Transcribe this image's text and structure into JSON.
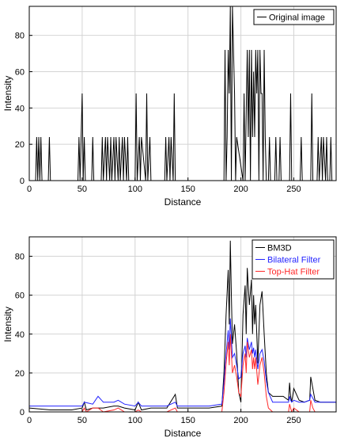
{
  "chart_data": [
    {
      "type": "line",
      "title": "",
      "xlabel": "Distance",
      "ylabel": "Intensity",
      "xlim": [
        0,
        290
      ],
      "ylim": [
        0,
        96
      ],
      "xticks": [
        0,
        50,
        100,
        150,
        200,
        250
      ],
      "yticks": [
        0,
        20,
        40,
        60,
        80
      ],
      "grid": true,
      "legend_position": "top-right",
      "series": [
        {
          "name": "Original image",
          "color": "#000000",
          "x": [
            0,
            6,
            7,
            8,
            9,
            10,
            11,
            12,
            13,
            18,
            19,
            20,
            46,
            47,
            48,
            50,
            51,
            52,
            53,
            59,
            60,
            61,
            68,
            69,
            70,
            72,
            73,
            74,
            76,
            77,
            78,
            80,
            81,
            82,
            84,
            85,
            86,
            88,
            89,
            90,
            92,
            93,
            94,
            100,
            101,
            102,
            104,
            105,
            106,
            110,
            111,
            112,
            114,
            115,
            116,
            128,
            129,
            130,
            132,
            133,
            134,
            136,
            137,
            138,
            184,
            185,
            186,
            187,
            188,
            189,
            190,
            191,
            192,
            194,
            195,
            196,
            202,
            203,
            204,
            206,
            207,
            208,
            209,
            210,
            211,
            212,
            213,
            214,
            215,
            216,
            217,
            218,
            219,
            220,
            221,
            222,
            223,
            224,
            226,
            227,
            228,
            232,
            233,
            234,
            236,
            237,
            238,
            246,
            247,
            248,
            256,
            257,
            258,
            266,
            267,
            268,
            272,
            273,
            274,
            276,
            277,
            278,
            280,
            281,
            282,
            284,
            285,
            286,
            290
          ],
          "y": [
            0,
            0,
            24,
            0,
            24,
            0,
            24,
            0,
            0,
            0,
            24,
            0,
            0,
            24,
            0,
            48,
            0,
            24,
            0,
            0,
            24,
            0,
            0,
            24,
            0,
            24,
            0,
            24,
            0,
            24,
            0,
            24,
            0,
            24,
            0,
            24,
            0,
            24,
            0,
            24,
            0,
            24,
            0,
            0,
            48,
            0,
            24,
            0,
            24,
            0,
            48,
            0,
            24,
            0,
            0,
            0,
            24,
            0,
            24,
            0,
            24,
            0,
            48,
            0,
            0,
            72,
            0,
            24,
            72,
            48,
            96,
            0,
            96,
            48,
            0,
            24,
            0,
            48,
            0,
            72,
            24,
            72,
            0,
            72,
            24,
            60,
            24,
            72,
            48,
            72,
            0,
            72,
            48,
            48,
            0,
            72,
            24,
            0,
            0,
            24,
            0,
            0,
            24,
            0,
            0,
            24,
            0,
            0,
            48,
            0,
            0,
            24,
            0,
            0,
            48,
            0,
            0,
            24,
            0,
            24,
            0,
            24,
            0,
            24,
            0,
            0,
            24,
            0,
            0
          ]
        }
      ]
    },
    {
      "type": "line",
      "title": "",
      "xlabel": "Distance",
      "ylabel": "Intensity",
      "xlim": [
        0,
        290
      ],
      "ylim": [
        0,
        90
      ],
      "xticks": [
        0,
        50,
        100,
        150,
        200,
        250
      ],
      "yticks": [
        0,
        20,
        40,
        60,
        80
      ],
      "grid": true,
      "legend_position": "top-right",
      "series": [
        {
          "name": "BM3D",
          "color": "#000000",
          "x": [
            0,
            20,
            40,
            50,
            52,
            54,
            60,
            70,
            80,
            84,
            90,
            100,
            103,
            106,
            115,
            130,
            138,
            140,
            150,
            170,
            182,
            184,
            186,
            188,
            189,
            190,
            191,
            192,
            194,
            196,
            198,
            200,
            202,
            204,
            205,
            206,
            208,
            210,
            211,
            212,
            213,
            214,
            216,
            218,
            220,
            222,
            224,
            226,
            230,
            240,
            245,
            246,
            247,
            248,
            250,
            255,
            260,
            265,
            266,
            268,
            270,
            275,
            280,
            290
          ],
          "y": [
            2,
            1,
            1,
            2,
            5,
            1,
            2,
            2,
            3,
            3,
            2,
            1,
            5,
            1,
            2,
            2,
            9,
            2,
            2,
            2,
            3,
            20,
            50,
            73,
            45,
            88,
            60,
            35,
            45,
            30,
            10,
            5,
            50,
            65,
            40,
            74,
            55,
            68,
            40,
            60,
            45,
            55,
            25,
            55,
            62,
            40,
            20,
            10,
            8,
            8,
            6,
            15,
            8,
            5,
            12,
            6,
            5,
            6,
            18,
            12,
            6,
            5,
            5,
            5
          ]
        },
        {
          "name": "Bilateral Filter",
          "color": "#2323ff",
          "x": [
            0,
            20,
            40,
            50,
            52,
            60,
            65,
            70,
            80,
            84,
            90,
            100,
            103,
            106,
            115,
            130,
            138,
            140,
            150,
            170,
            182,
            184,
            186,
            188,
            189,
            190,
            191,
            192,
            194,
            196,
            198,
            200,
            202,
            204,
            205,
            206,
            208,
            210,
            211,
            212,
            213,
            214,
            216,
            218,
            220,
            222,
            224,
            226,
            230,
            240,
            245,
            246,
            247,
            248,
            250,
            255,
            260,
            265,
            266,
            268,
            270,
            275,
            280,
            290
          ],
          "y": [
            3,
            3,
            3,
            3,
            5,
            4,
            8,
            5,
            5,
            6,
            4,
            3,
            5,
            3,
            3,
            3,
            5,
            3,
            3,
            3,
            4,
            15,
            30,
            42,
            32,
            48,
            38,
            28,
            30,
            24,
            17,
            18,
            30,
            34,
            28,
            38,
            32,
            36,
            30,
            33,
            28,
            32,
            22,
            30,
            32,
            26,
            16,
            10,
            5,
            5,
            5,
            8,
            6,
            5,
            6,
            5,
            5,
            6,
            9,
            7,
            5,
            5,
            5,
            5
          ]
        },
        {
          "name": "Top-Hat Filter",
          "color": "#ff2a2a",
          "x": [
            0,
            20,
            40,
            50,
            52,
            54,
            60,
            65,
            70,
            80,
            84,
            90,
            100,
            103,
            106,
            115,
            130,
            138,
            140,
            150,
            170,
            182,
            184,
            186,
            188,
            189,
            190,
            191,
            192,
            194,
            196,
            198,
            200,
            202,
            204,
            205,
            206,
            208,
            210,
            211,
            212,
            213,
            214,
            216,
            218,
            220,
            222,
            224,
            226,
            230,
            240,
            245,
            246,
            247,
            248,
            250,
            255,
            260,
            265,
            266,
            268,
            270,
            275,
            280,
            290
          ],
          "y": [
            0,
            0,
            0,
            0,
            2,
            0,
            2,
            2,
            0,
            1,
            2,
            0,
            0,
            1,
            0,
            0,
            0,
            2,
            0,
            0,
            0,
            0,
            10,
            25,
            36,
            24,
            40,
            30,
            20,
            24,
            18,
            10,
            8,
            24,
            30,
            20,
            36,
            28,
            32,
            22,
            28,
            22,
            28,
            14,
            24,
            28,
            20,
            8,
            2,
            0,
            0,
            0,
            4,
            2,
            0,
            2,
            0,
            0,
            0,
            6,
            2,
            0,
            0,
            0,
            0
          ]
        }
      ]
    }
  ]
}
